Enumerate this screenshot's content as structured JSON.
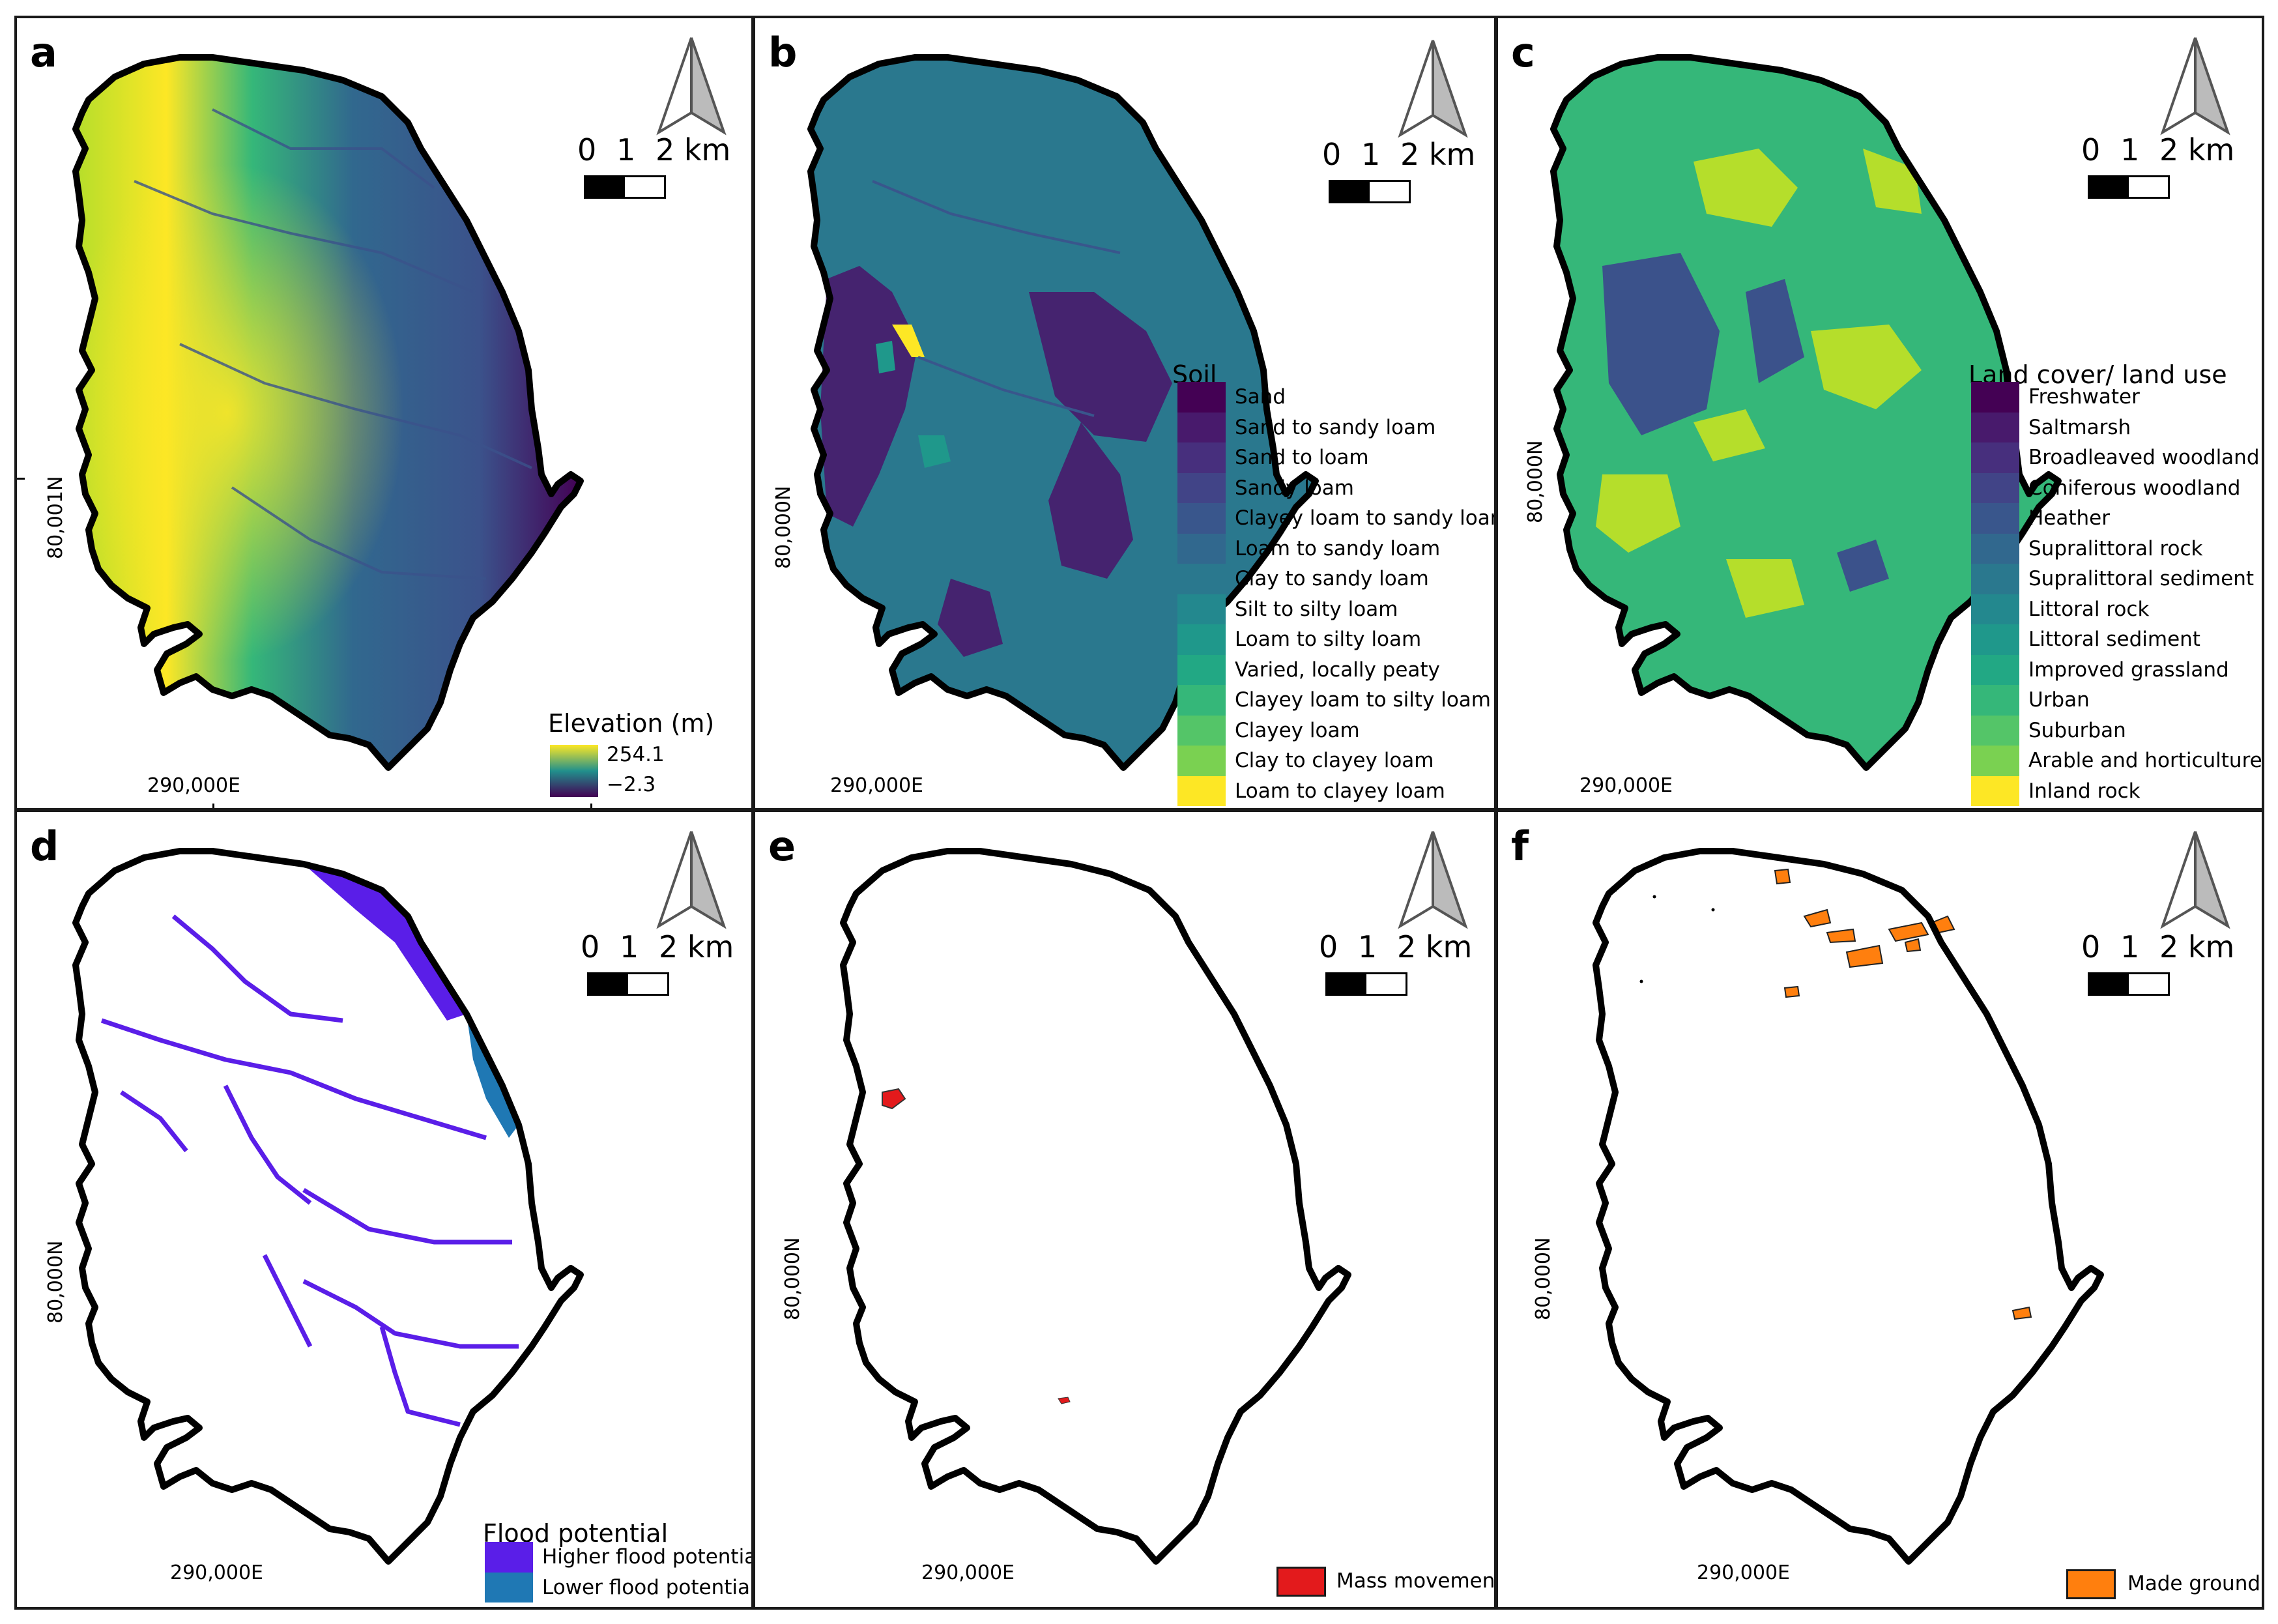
{
  "panels": {
    "a": {
      "label": "a",
      "ycoord": "80,001N",
      "xcoord": "290,000E",
      "legend": {
        "title": "Elevation (m)",
        "max": "254.1",
        "min": "−2.3"
      }
    },
    "b": {
      "label": "b",
      "ycoord": "80,000N",
      "xcoord": "290,000E",
      "legend": {
        "title": "Soil",
        "items": [
          "Sand",
          "Sand to sandy loam",
          "Sand to loam",
          "Sandy loam",
          "Clayey loam to sandy loam",
          "Loam to sandy loam",
          "Clay to sandy loam",
          "Silt to silty loam",
          "Loam to silty loam",
          "Varied, locally peaty",
          "Clayey loam to silty loam",
          "Clayey loam",
          "Clay to clayey loam",
          "Loam to clayey loam"
        ]
      }
    },
    "c": {
      "label": "c",
      "ycoord": "80,000N",
      "xcoord": "290,000E",
      "legend": {
        "title": "Land cover/ land use",
        "items": [
          "Freshwater",
          "Saltmarsh",
          "Broadleaved woodland",
          "Coniferous woodland",
          "Heather",
          "Supralittoral rock",
          "Supralittoral sediment",
          "Littoral rock",
          "Littoral sediment",
          "Improved grassland",
          "Urban",
          "Suburban",
          "Arable and horticulture",
          "Inland rock"
        ]
      }
    },
    "d": {
      "label": "d",
      "ycoord": "80,000N",
      "xcoord": "290,000E",
      "legend": {
        "title": "Flood potential",
        "items": [
          "Higher flood potential",
          "Lower flood potential"
        ]
      }
    },
    "e": {
      "label": "e",
      "ycoord": "80,000N",
      "xcoord": "290,000E",
      "legend": {
        "items": [
          "Mass movement"
        ]
      }
    },
    "f": {
      "label": "f",
      "ycoord": "80,000N",
      "xcoord": "290,000E",
      "legend": {
        "items": [
          "Made ground"
        ]
      }
    }
  },
  "scale_bar": {
    "labels": [
      "0",
      "1",
      "2 km"
    ]
  },
  "colors": {
    "viridis14": [
      "#440154",
      "#481a6c",
      "#472f7d",
      "#414487",
      "#39568c",
      "#31688e",
      "#2a788e",
      "#23888e",
      "#1f988b",
      "#22a884",
      "#35b779",
      "#54c568",
      "#7ad151",
      "#fde725"
    ],
    "flood_higher": "#5a1ee8",
    "flood_lower": "#1f78b4",
    "mass_movement": "#e31a1c",
    "made_ground": "#ff7f0e"
  }
}
